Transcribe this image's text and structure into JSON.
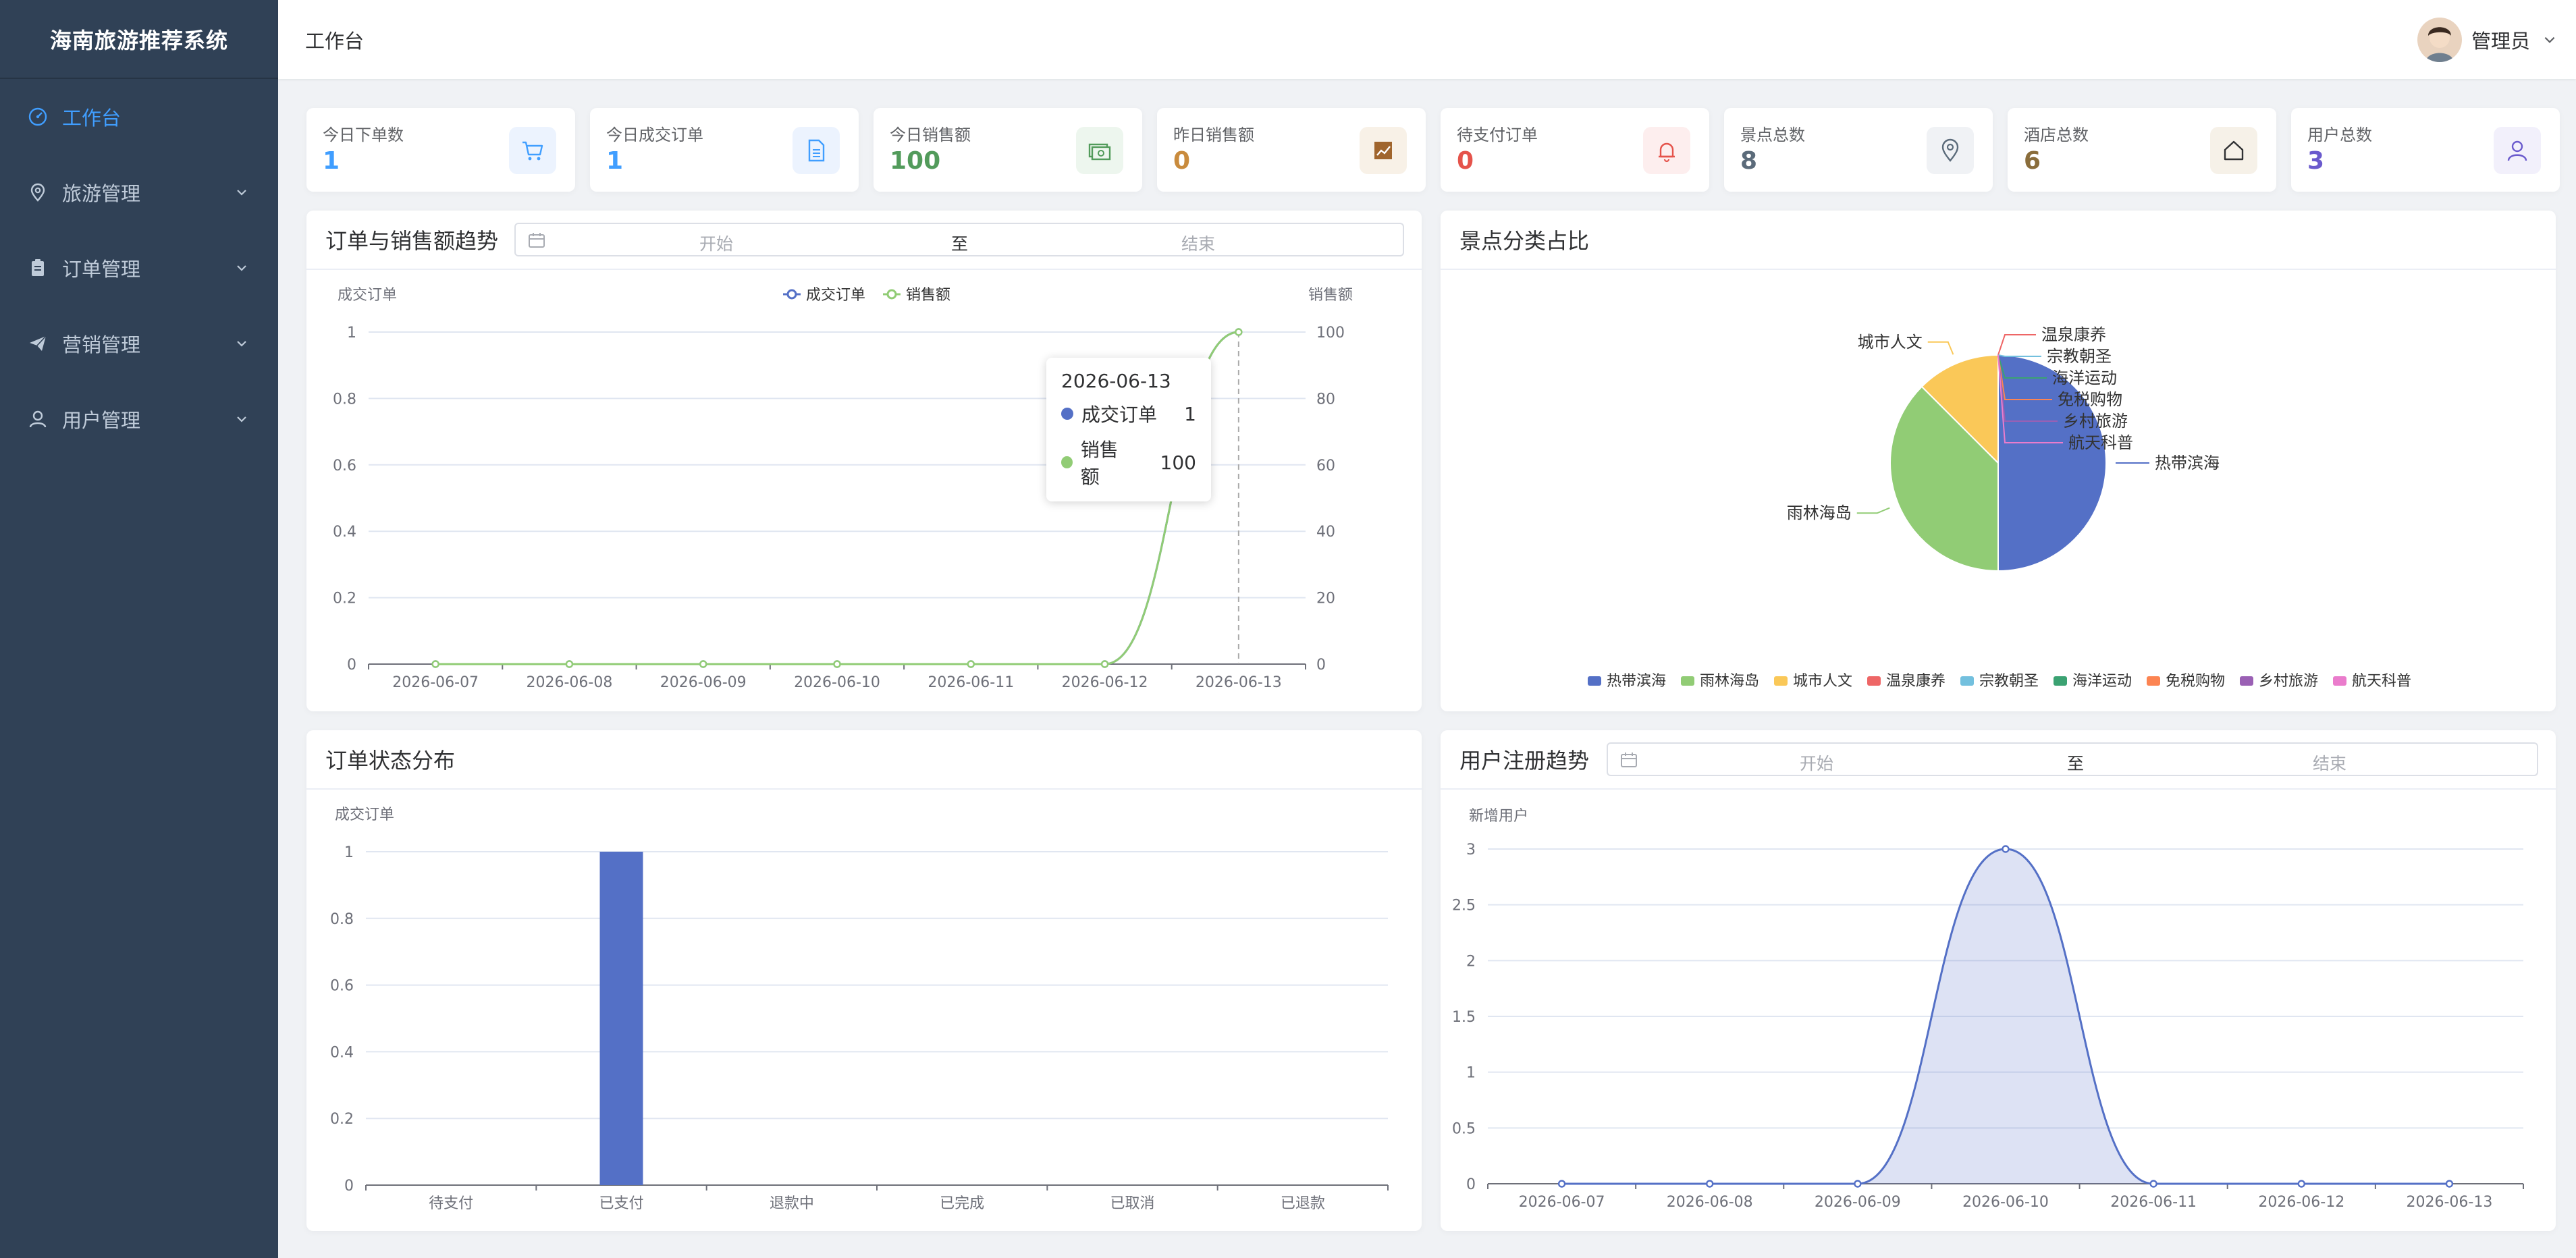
{
  "app": {
    "title": "海南旅游推荐系统"
  },
  "sidebar": {
    "items": [
      {
        "label": "工作台",
        "icon": "dashboard-icon",
        "active": true
      },
      {
        "label": "旅游管理",
        "icon": "location-pin-icon"
      },
      {
        "label": "订单管理",
        "icon": "clipboard-icon"
      },
      {
        "label": "营销管理",
        "icon": "send-icon"
      },
      {
        "label": "用户管理",
        "icon": "user-icon"
      }
    ]
  },
  "header": {
    "breadcrumb": "工作台",
    "user_name": "管理员"
  },
  "stats": [
    {
      "label": "今日下单数",
      "value": "1",
      "color": "#409eff",
      "icon": "cart-icon"
    },
    {
      "label": "今日成交订单",
      "value": "1",
      "color": "#409eff",
      "icon": "document-icon"
    },
    {
      "label": "今日销售额",
      "value": "100",
      "color": "#529b5b",
      "icon": "money-icon"
    },
    {
      "label": "昨日销售额",
      "value": "0",
      "color": "#c98b3d",
      "icon": "trend-chart-icon"
    },
    {
      "label": "待支付订单",
      "value": "0",
      "color": "#e5534b",
      "icon": "bell-icon"
    },
    {
      "label": "景点总数",
      "value": "8",
      "color": "#5b6b7a",
      "icon": "location-pin-icon"
    },
    {
      "label": "酒店总数",
      "value": "6",
      "color": "#8a6d3b",
      "icon": "house-icon"
    },
    {
      "label": "用户总数",
      "value": "3",
      "color": "#6a5acd",
      "icon": "user-icon"
    }
  ],
  "panels": {
    "orders_trend": {
      "title": "订单与销售额趋势",
      "range_start": "开始",
      "range_to": "至",
      "range_end": "结束"
    },
    "category_share": {
      "title": "景点分类占比"
    },
    "order_status": {
      "title": "订单状态分布"
    },
    "user_trend": {
      "title": "用户注册趋势",
      "range_start": "开始",
      "range_to": "至",
      "range_end": "结束"
    }
  },
  "tooltip": {
    "title": "2026-06-13",
    "rows": [
      {
        "name": "成交订单",
        "value": "1",
        "color": "#5470c6"
      },
      {
        "name": "销售额",
        "value": "100",
        "color": "#91cc75"
      }
    ]
  },
  "chart_data": [
    {
      "type": "line",
      "x": [
        "2026-06-07",
        "2026-06-08",
        "2026-06-09",
        "2026-06-10",
        "2026-06-11",
        "2026-06-12",
        "2026-06-13"
      ],
      "series": [
        {
          "name": "成交订单",
          "axis": "left",
          "values": [
            0,
            0,
            0,
            0,
            0,
            0,
            1
          ],
          "color": "#5470c6"
        },
        {
          "name": "销售额",
          "axis": "right",
          "values": [
            0,
            0,
            0,
            0,
            0,
            0,
            100
          ],
          "color": "#91cc75"
        }
      ],
      "ylabel_left": "成交订单",
      "ylim_left": [
        0,
        1
      ],
      "yticks_left": [
        "0",
        "0.2",
        "0.4",
        "0.6",
        "0.8",
        "1"
      ],
      "ylabel_right": "销售额",
      "ylim_right": [
        0,
        100
      ],
      "yticks_right": [
        "0",
        "20",
        "40",
        "60",
        "80",
        "100"
      ],
      "legend": "top-center",
      "grid": true,
      "smooth": true
    },
    {
      "type": "pie",
      "slices": [
        {
          "name": "热带滨海",
          "value": 4,
          "color": "#5470c6"
        },
        {
          "name": "雨林海岛",
          "value": 3,
          "color": "#91cc75"
        },
        {
          "name": "城市人文",
          "value": 1,
          "color": "#fac858"
        },
        {
          "name": "温泉康养",
          "value": 0,
          "color": "#ee6666"
        },
        {
          "name": "宗教朝圣",
          "value": 0,
          "color": "#73c0de"
        },
        {
          "name": "海洋运动",
          "value": 0,
          "color": "#3ba272"
        },
        {
          "name": "免税购物",
          "value": 0,
          "color": "#fc8452"
        },
        {
          "name": "乡村旅游",
          "value": 0,
          "color": "#9a60b4"
        },
        {
          "name": "航天科普",
          "value": 0,
          "color": "#ea7ccc"
        }
      ],
      "legend": "bottom"
    },
    {
      "type": "bar",
      "categories": [
        "待支付",
        "已支付",
        "退款中",
        "已完成",
        "已取消",
        "已退款"
      ],
      "values": [
        0,
        1,
        0,
        0,
        0,
        0
      ],
      "ylabel": "成交订单",
      "ylim": [
        0,
        1
      ],
      "yticks": [
        "0",
        "0.2",
        "0.4",
        "0.6",
        "0.8",
        "1"
      ],
      "color": "#5470c6",
      "grid": true
    },
    {
      "type": "area",
      "x": [
        "2026-06-07",
        "2026-06-08",
        "2026-06-09",
        "2026-06-10",
        "2026-06-11",
        "2026-06-12",
        "2026-06-13"
      ],
      "values": [
        0,
        0,
        0,
        3,
        0,
        0,
        0
      ],
      "ylabel": "新增用户",
      "ylim": [
        0,
        3
      ],
      "yticks": [
        "0",
        "0.5",
        "1",
        "1.5",
        "2",
        "2.5",
        "3"
      ],
      "color": "#5470c6",
      "grid": true,
      "smooth": true
    }
  ]
}
